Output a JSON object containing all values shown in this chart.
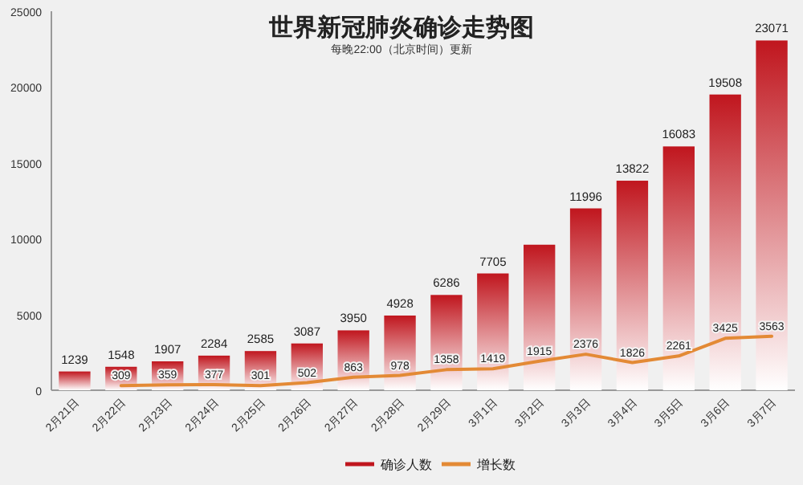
{
  "chart_data": {
    "type": "bar",
    "title": "世界新冠肺炎确诊走势图",
    "subtitle": "每晚22:00（北京时间）更新",
    "categories": [
      "2月21日",
      "2月22日",
      "2月23日",
      "2月24日",
      "2月25日",
      "2月26日",
      "2月27日",
      "2月28日",
      "2月29日",
      "3月1日",
      "3月2日",
      "3月3日",
      "3月4日",
      "3月5日",
      "3月6日",
      "3月7日"
    ],
    "series": [
      {
        "name": "确诊人数",
        "color": "#c0161e",
        "values": [
          1239,
          1548,
          1907,
          2284,
          2585,
          3087,
          3950,
          4928,
          6286,
          7705,
          9600,
          11996,
          13822,
          16083,
          19508,
          23071
        ],
        "value_labels": [
          "1239",
          "1548",
          "1907",
          "2284",
          "2585",
          "3087",
          "3950",
          "4928",
          "6286",
          "7705",
          null,
          "11996",
          "13822",
          "16083",
          "19508",
          "23071"
        ]
      },
      {
        "name": "增长数",
        "type": "line",
        "color": "#e38a35",
        "values": [
          null,
          309,
          359,
          377,
          301,
          502,
          863,
          978,
          1358,
          1419,
          1915,
          2376,
          1826,
          2261,
          3425,
          3563
        ],
        "value_labels": [
          null,
          "309",
          "359",
          "377",
          "301",
          "502",
          "863",
          "978",
          "1358",
          "1419",
          "1915",
          "2376",
          "1826",
          "2261",
          "3425",
          "3563"
        ]
      }
    ],
    "ylim": [
      0,
      25000
    ],
    "yticks": [
      0,
      5000,
      10000,
      15000,
      20000,
      25000
    ],
    "grid": false,
    "legend": "bottom",
    "marker": "none"
  }
}
